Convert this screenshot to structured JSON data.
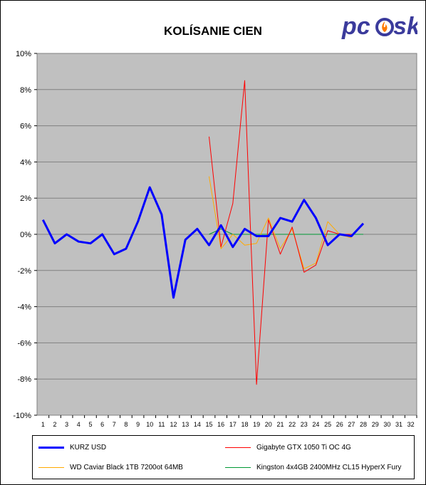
{
  "chart_data": {
    "type": "line",
    "title": "KOLÍSANIE CIEN",
    "xlabel": "",
    "ylabel": "",
    "x": [
      1,
      2,
      3,
      4,
      5,
      6,
      7,
      8,
      9,
      10,
      11,
      12,
      13,
      14,
      15,
      16,
      17,
      18,
      19,
      20,
      21,
      22,
      23,
      24,
      25,
      26,
      27,
      28,
      29,
      30,
      31,
      32
    ],
    "ylim": [
      -10,
      10
    ],
    "yticks": [
      "-10%",
      "-8%",
      "-6%",
      "-4%",
      "-2%",
      "0%",
      "2%",
      "4%",
      "6%",
      "8%",
      "10%"
    ],
    "ytick_values": [
      -10,
      -8,
      -6,
      -4,
      -2,
      0,
      2,
      4,
      6,
      8,
      10
    ],
    "grid": true,
    "legend_position": "bottom",
    "series": [
      {
        "name": "KURZ USD",
        "color": "#0000ff",
        "width": 3,
        "x": [
          1,
          2,
          3,
          4,
          5,
          6,
          7,
          8,
          9,
          10,
          11,
          12,
          13,
          14,
          15,
          16,
          17,
          18,
          19,
          20,
          21,
          22,
          23,
          24,
          25,
          26,
          27,
          28
        ],
        "values": [
          0.8,
          -0.5,
          0.0,
          -0.4,
          -0.5,
          0.0,
          -1.1,
          -0.8,
          0.7,
          2.6,
          1.1,
          -3.5,
          -0.3,
          0.3,
          -0.6,
          0.5,
          -0.7,
          0.3,
          -0.1,
          -0.1,
          0.9,
          0.7,
          1.9,
          0.9,
          -0.6,
          0.0,
          -0.1,
          0.6
        ]
      },
      {
        "name": "Gigabyte GTX 1050 Ti OC 4G",
        "color": "#ff0000",
        "width": 1,
        "x": [
          15,
          16,
          17,
          18,
          19,
          20,
          21,
          22,
          23,
          24,
          25,
          26,
          27
        ],
        "values": [
          5.4,
          -0.7,
          1.7,
          8.5,
          -8.3,
          0.8,
          -1.1,
          0.4,
          -2.1,
          -1.7,
          0.2,
          0.0,
          0.0
        ]
      },
      {
        "name": "WD Caviar Black 1TB 7200ot 64MB",
        "color": "#ffaa00",
        "width": 1,
        "x": [
          15,
          16,
          17,
          18,
          19,
          20,
          21,
          22,
          23,
          24,
          25,
          26,
          27
        ],
        "values": [
          3.2,
          -0.8,
          0.0,
          -0.6,
          -0.5,
          0.9,
          -0.8,
          0.3,
          -1.9,
          -1.6,
          0.7,
          0.0,
          -0.2
        ]
      },
      {
        "name": "Kingston 4x4GB 2400MHz CL15 HyperX Fury",
        "color": "#009933",
        "width": 1,
        "x": [
          15,
          16,
          17,
          18,
          19,
          20,
          21,
          22,
          23,
          24,
          25,
          26,
          27,
          28
        ],
        "values": [
          0.0,
          0.3,
          0.0,
          0.0,
          0.0,
          0.0,
          0.0,
          0.0,
          0.0,
          0.0,
          0.0,
          0.0,
          0.0,
          0.0
        ]
      }
    ]
  },
  "logo": {
    "text_pc": "pc",
    "text_sk": "sk",
    "color": "#3b3b9c",
    "flame_color": "#ff7a00"
  }
}
